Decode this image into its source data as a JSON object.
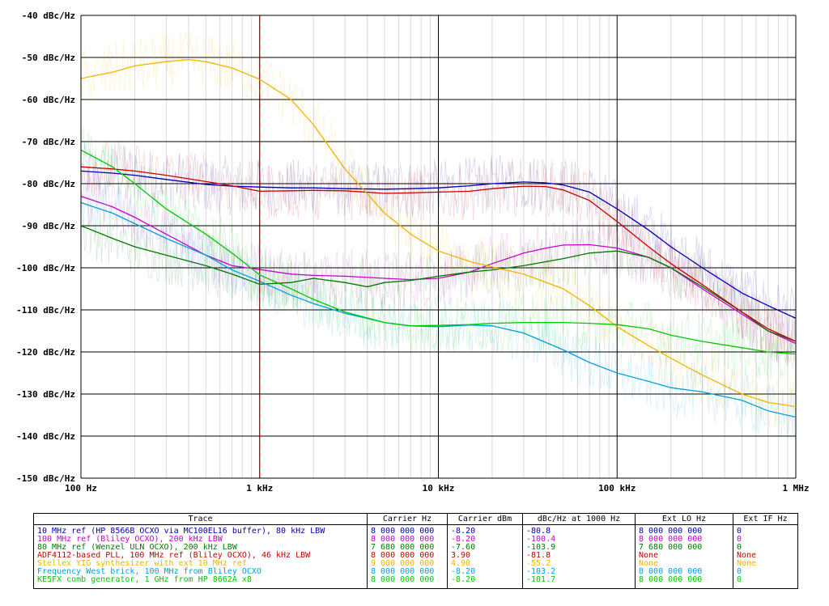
{
  "chart_data": {
    "type": "line",
    "x_scale": "log",
    "xlim": [
      100,
      1000000
    ],
    "ylim": [
      -150,
      -40
    ],
    "x_ticks": [
      {
        "v": 100,
        "label": "100 Hz"
      },
      {
        "v": 1000,
        "label": "1 kHz"
      },
      {
        "v": 10000,
        "label": "10 kHz"
      },
      {
        "v": 100000,
        "label": "100 kHz"
      },
      {
        "v": 1000000,
        "label": "1 MHz"
      }
    ],
    "y_ticks": [
      {
        "v": -40,
        "label": "-40 dBc/Hz"
      },
      {
        "v": -50,
        "label": "-50 dBc/Hz"
      },
      {
        "v": -60,
        "label": "-60 dBc/Hz"
      },
      {
        "v": -70,
        "label": "-70 dBc/Hz"
      },
      {
        "v": -80,
        "label": "-80 dBc/Hz"
      },
      {
        "v": -90,
        "label": "-90 dBc/Hz"
      },
      {
        "v": -100,
        "label": "-100 dBc/Hz"
      },
      {
        "v": -110,
        "label": "-110 dBc/Hz"
      },
      {
        "v": -120,
        "label": "-120 dBc/Hz"
      },
      {
        "v": -130,
        "label": "-130 dBc/Hz"
      },
      {
        "v": -140,
        "label": "-140 dBc/Hz"
      },
      {
        "v": -150,
        "label": "-150 dBc/Hz"
      }
    ],
    "grid": true,
    "marker_x": 1000,
    "marker_color": "#a00000",
    "axis_color": "#000000",
    "series": [
      {
        "name": "10 MHz ref (HP 8566B OCXO via MC100EL16 buffer), 80 kHz LBW",
        "color": "#0000b0",
        "x": [
          100,
          150,
          200,
          300,
          500,
          700,
          1000,
          1500,
          2000,
          3000,
          5000,
          7000,
          10000,
          15000,
          20000,
          30000,
          40000,
          50000,
          70000,
          100000,
          150000,
          200000,
          300000,
          500000,
          700000,
          1000000
        ],
        "y": [
          -77,
          -77.5,
          -78,
          -79,
          -80.2,
          -80.6,
          -80.8,
          -81,
          -81,
          -81.2,
          -81.3,
          -81.2,
          -81,
          -80.5,
          -80,
          -79.6,
          -79.8,
          -80.3,
          -82,
          -86,
          -91,
          -95,
          -100,
          -106,
          -109,
          -112
        ]
      },
      {
        "name": "100 MHz ref (Bliley OCXO), 200 kHz LBW",
        "color": "#c800c8",
        "x": [
          100,
          150,
          200,
          300,
          500,
          700,
          1000,
          1500,
          2000,
          3000,
          5000,
          7000,
          10000,
          15000,
          20000,
          30000,
          40000,
          50000,
          70000,
          100000,
          150000,
          200000,
          300000,
          500000,
          700000,
          1000000
        ],
        "y": [
          -83,
          -85.5,
          -88,
          -92,
          -97,
          -99.5,
          -100.4,
          -101.5,
          -101.8,
          -102,
          -102.5,
          -102.8,
          -102.5,
          -101,
          -99,
          -96.5,
          -95.3,
          -94.6,
          -94.5,
          -95.3,
          -97.5,
          -100,
          -105,
          -111,
          -115,
          -118
        ]
      },
      {
        "name": "80 MHz ref (Wenzel ULN OCXO), 200 kHz LBW",
        "color": "#007800",
        "x": [
          100,
          150,
          200,
          300,
          500,
          700,
          1000,
          1500,
          2000,
          3000,
          4000,
          5000,
          7000,
          10000,
          15000,
          20000,
          30000,
          50000,
          70000,
          100000,
          150000,
          200000,
          300000,
          500000,
          700000,
          1000000
        ],
        "y": [
          -90,
          -93,
          -95,
          -97,
          -99.5,
          -101.5,
          -103.9,
          -103.5,
          -102.5,
          -103.5,
          -104.5,
          -103.5,
          -103,
          -102,
          -101,
          -100.5,
          -99.5,
          -97.8,
          -96.5,
          -96,
          -97.5,
          -100,
          -104.5,
          -110.5,
          -115,
          -117.5
        ]
      },
      {
        "name": "ADF4112-based PLL, 100 MHz ref (Bliley OCXO), 46 kHz LBW",
        "color": "#c80000",
        "x": [
          100,
          150,
          200,
          300,
          500,
          700,
          1000,
          1500,
          2000,
          3000,
          5000,
          7000,
          10000,
          15000,
          20000,
          30000,
          40000,
          50000,
          70000,
          100000,
          150000,
          200000,
          300000,
          500000,
          700000,
          1000000
        ],
        "y": [
          -76,
          -76.5,
          -77,
          -78,
          -79.5,
          -80.5,
          -81.8,
          -81.7,
          -81.6,
          -81.7,
          -82.3,
          -82.2,
          -82,
          -81.8,
          -81.2,
          -80.6,
          -80.7,
          -81.5,
          -84,
          -89,
          -95,
          -99,
          -104,
          -110.5,
          -114.5,
          -117.5
        ]
      },
      {
        "name": "Stellex YIG synthesizer with ext 10 MHz ref",
        "color": "#f0b400",
        "x": [
          100,
          150,
          200,
          300,
          400,
          500,
          700,
          1000,
          1500,
          2000,
          3000,
          5000,
          7000,
          10000,
          15000,
          20000,
          30000,
          50000,
          70000,
          100000,
          150000,
          200000,
          300000,
          500000,
          700000,
          1000000
        ],
        "y": [
          -55,
          -53.5,
          -52,
          -51,
          -50.5,
          -51,
          -52.5,
          -55.2,
          -60,
          -66,
          -76.5,
          -87,
          -92,
          -96,
          -98.5,
          -99.8,
          -101.5,
          -105,
          -109,
          -114,
          -118.5,
          -121.5,
          -125.5,
          -130,
          -132,
          -133
        ]
      },
      {
        "name": "Frequency West brick, 100 MHz from Bliley OCXO",
        "color": "#00a0e0",
        "x": [
          100,
          150,
          200,
          300,
          500,
          700,
          1000,
          1500,
          2000,
          3000,
          5000,
          7000,
          10000,
          15000,
          20000,
          30000,
          50000,
          70000,
          100000,
          150000,
          200000,
          300000,
          500000,
          700000,
          1000000
        ],
        "y": [
          -84.5,
          -87,
          -89.5,
          -93,
          -97,
          -100.5,
          -103.2,
          -106.5,
          -108.5,
          -110.8,
          -113,
          -113.8,
          -114,
          -113.6,
          -113.8,
          -115.5,
          -119.5,
          -122.5,
          -125,
          -127,
          -128.5,
          -129.5,
          -131.5,
          -134,
          -135.5
        ]
      },
      {
        "name": "KE5FX comb generator, 1 GHz from HP 8662A x8",
        "color": "#00c800",
        "x": [
          100,
          150,
          200,
          300,
          500,
          700,
          1000,
          1500,
          2000,
          3000,
          5000,
          7000,
          10000,
          15000,
          20000,
          30000,
          50000,
          70000,
          100000,
          150000,
          200000,
          300000,
          500000,
          700000,
          1000000
        ],
        "y": [
          -72,
          -76,
          -80,
          -86,
          -92,
          -96.5,
          -101.7,
          -105,
          -107.5,
          -110.5,
          -113,
          -113.8,
          -113.7,
          -113.5,
          -113.2,
          -113,
          -113,
          -113.2,
          -113.5,
          -114.5,
          -116,
          -117.5,
          -119,
          -120,
          -120.5
        ]
      }
    ]
  },
  "legend": {
    "headers": [
      "Trace",
      "Carrier Hz",
      "Carrier dBm",
      "dBc/Hz at 1000 Hz",
      "Ext LO Hz",
      "Ext IF Hz"
    ],
    "rows": [
      {
        "color": "#0000b0",
        "cells": [
          "10 MHz ref (HP 8566B OCXO via MC100EL16 buffer), 80 kHz LBW",
          "8 000 000 000",
          "-8.20",
          "-80.8",
          "8 000 000 000",
          "0"
        ]
      },
      {
        "color": "#c800c8",
        "cells": [
          "100 MHz ref (Bliley OCXO), 200 kHz LBW",
          "8 000 000 000",
          "-8.20",
          "-100.4",
          "8 000 000 000",
          "0"
        ]
      },
      {
        "color": "#007800",
        "cells": [
          "80 MHz ref (Wenzel ULN OCXO), 200 kHz LBW",
          "7 680 000 000",
          "-7.60",
          "-103.9",
          "7 680 000 000",
          "0"
        ]
      },
      {
        "color": "#c80000",
        "cells": [
          "ADF4112-based PLL, 100 MHz ref (Bliley OCXO), 46 kHz LBW",
          "8 000 000 000",
          "3.90",
          "-81.8",
          "None",
          "None"
        ]
      },
      {
        "color": "#f0b400",
        "cells": [
          "Stellex YIG synthesizer with ext 10 MHz ref",
          "9 000 000 000",
          "4.90",
          "-55.2",
          "None",
          "None"
        ]
      },
      {
        "color": "#00a0e0",
        "cells": [
          "Frequency West brick, 100 MHz from Bliley OCXO",
          "8 000 000 000",
          "-8.20",
          "-103.2",
          "8 000 000 000",
          "0"
        ]
      },
      {
        "color": "#00c800",
        "cells": [
          "KE5FX comb generator, 1 GHz from HP 8662A x8",
          "8 000 000 000",
          "-8.20",
          "-101.7",
          "8 000 000 000",
          "0"
        ]
      }
    ]
  }
}
